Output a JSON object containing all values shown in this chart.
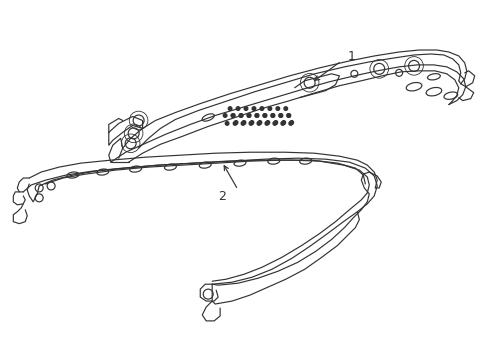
{
  "background_color": "#ffffff",
  "line_color": "#333333",
  "line_width": 0.85,
  "label1": "1",
  "label2": "2",
  "figsize": [
    4.9,
    3.6
  ],
  "dpi": 100
}
